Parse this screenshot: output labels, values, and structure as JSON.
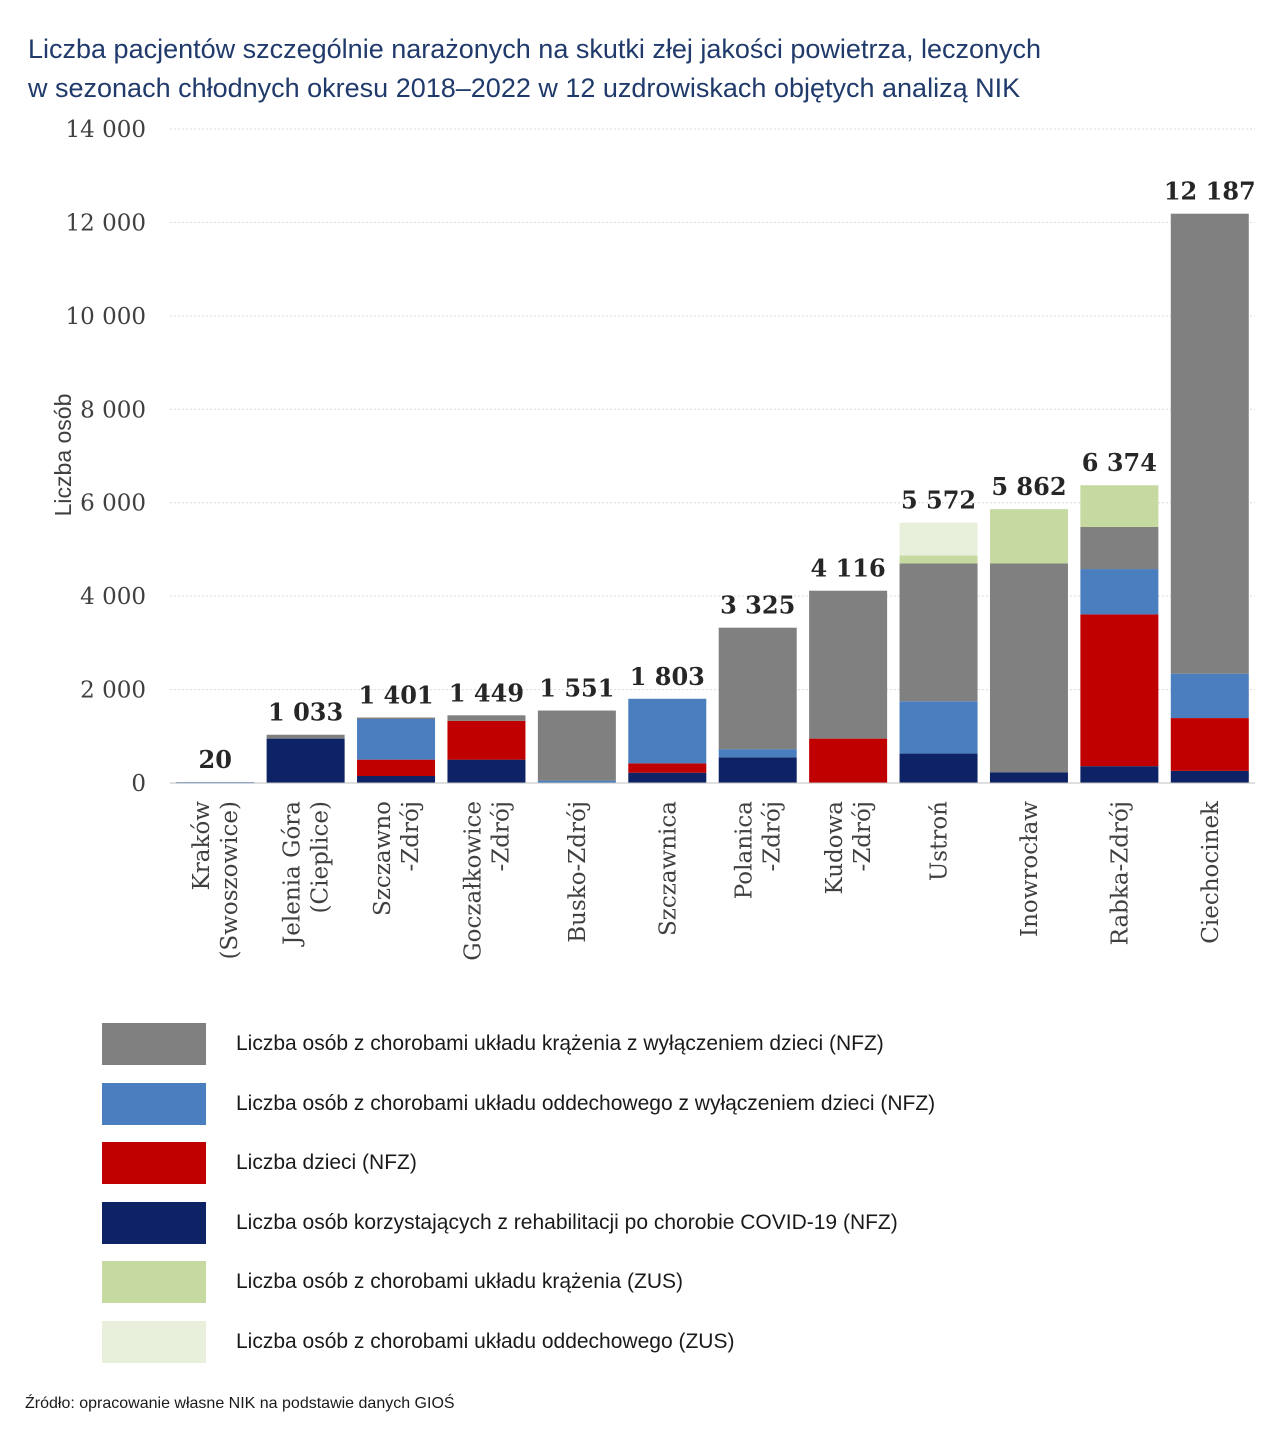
{
  "title_lines": [
    "Liczba pacjentów szczególnie narażonych na skutki złej jakości powietrza, leczonych",
    "w sezonach chłodnych okresu 2018–2022 w 12 uzdrowiskach objętych analizą NIK"
  ],
  "source": "Źródło: opracowanie własne NIK na podstawie danych GIOŚ",
  "chart_data": {
    "type": "bar",
    "stacked": true,
    "ylabel": "Liczba osób",
    "ylim": [
      0,
      14000
    ],
    "yticks": [
      0,
      2000,
      4000,
      6000,
      8000,
      10000,
      12000,
      14000
    ],
    "ytick_labels": [
      "0",
      "2 000",
      "4 000",
      "6 000",
      "8 000",
      "10 000",
      "12 000",
      "14 000"
    ],
    "grid": true,
    "legend_position": "bottom",
    "categories": [
      [
        "Kraków",
        "(Swoszowice)"
      ],
      [
        "Jelenia Góra",
        "(Cieplice)"
      ],
      [
        "Szczawno",
        "-Zdrój"
      ],
      [
        "Goczałkowice",
        "-Zdrój"
      ],
      [
        "Busko-Zdrój"
      ],
      [
        "Szczawnica"
      ],
      [
        "Polanica",
        "-Zdrój"
      ],
      [
        "Kudowa",
        "-Zdrój"
      ],
      [
        "Ustroń"
      ],
      [
        "Inowrocław"
      ],
      [
        "Rabka-Zdrój"
      ],
      [
        "Ciechocinek"
      ]
    ],
    "totals": [
      20,
      1033,
      1401,
      1449,
      1551,
      1803,
      3325,
      4116,
      5572,
      5862,
      6374,
      12187
    ],
    "total_labels": [
      "20",
      "1 033",
      "1 401",
      "1 449",
      "1 551",
      "1 803",
      "3 325",
      "4 116",
      "5 572",
      "5 862",
      "6 374",
      "12 187"
    ],
    "series": [
      {
        "name": "Liczba osób korzystających z rehabilitacji po chorobie COVID-19 (NFZ)",
        "color": "#0e2366",
        "values": [
          0,
          950,
          150,
          500,
          0,
          220,
          550,
          0,
          630,
          230,
          360,
          260
        ]
      },
      {
        "name": "Liczba dzieci (NFZ)",
        "color": "#c00000",
        "values": [
          0,
          0,
          350,
          830,
          0,
          200,
          0,
          950,
          0,
          0,
          3250,
          1130
        ]
      },
      {
        "name": "Liczba osób z chorobami układu oddechowego z wyłączeniem dzieci (NFZ)",
        "color": "#4a7ebf",
        "values": [
          20,
          0,
          900,
          0,
          51,
          1383,
          175,
          0,
          1120,
          0,
          970,
          950
        ]
      },
      {
        "name": "Liczba osób z chorobami układu krążenia z wyłączeniem dzieci (NFZ)",
        "color": "#808080",
        "values": [
          0,
          83,
          1,
          119,
          1500,
          0,
          2600,
          3166,
          2950,
          4470,
          900,
          9847
        ]
      },
      {
        "name": "Liczba osób z chorobami układu krążenia (ZUS)",
        "color": "#c5d9a0",
        "values": [
          0,
          0,
          0,
          0,
          0,
          0,
          0,
          0,
          172,
          1162,
          894,
          0
        ]
      },
      {
        "name": "Liczba osób z chorobami układu oddechowego (ZUS)",
        "color": "#e8f0dc",
        "values": [
          0,
          0,
          0,
          0,
          0,
          0,
          0,
          0,
          700,
          0,
          0,
          0
        ]
      }
    ]
  },
  "legend": [
    {
      "label": "Liczba osób z chorobami układu krążenia z wyłączeniem dzieci (NFZ)",
      "color": "#808080"
    },
    {
      "label": "Liczba osób z chorobami układu oddechowego z wyłączeniem dzieci (NFZ)",
      "color": "#4a7ebf"
    },
    {
      "label": "Liczba dzieci (NFZ)",
      "color": "#c00000"
    },
    {
      "label": "Liczba osób korzystających z rehabilitacji po chorobie COVID-19 (NFZ)",
      "color": "#0e2366"
    },
    {
      "label": "Liczba osób z chorobami układu krążenia (ZUS)",
      "color": "#c5d9a0"
    },
    {
      "label": "Liczba osób z chorobami układu oddechowego (ZUS)",
      "color": "#e8f0dc"
    }
  ]
}
